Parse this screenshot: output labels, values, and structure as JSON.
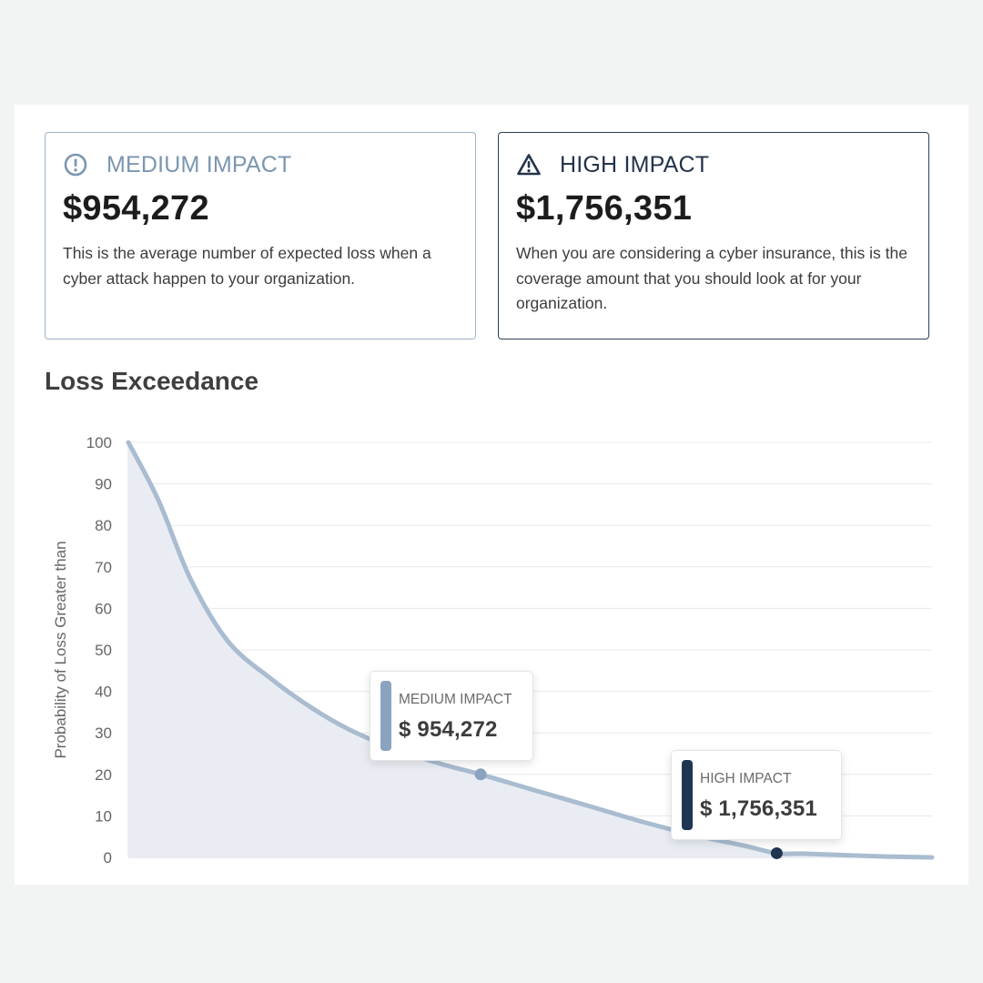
{
  "cards": {
    "medium": {
      "title": "MEDIUM IMPACT",
      "amount": "$954,272",
      "description": "This is the average number of expected loss when a cyber attack happen to your organization.",
      "icon": "exclamation-circle-icon",
      "color": "#7b96b0"
    },
    "high": {
      "title": "HIGH IMPACT",
      "amount": "$1,756,351",
      "description": "When you are considering a cyber insurance, this is the coverage amount that you should look at for your organization.",
      "icon": "warning-triangle-icon",
      "color": "#22344a"
    }
  },
  "chart_title": "Loss Exceedance",
  "tooltips": {
    "medium": {
      "label": "MEDIUM IMPACT",
      "value": "$ 954,272"
    },
    "high": {
      "label": "HIGH IMPACT",
      "value": "$ 1,756,351"
    }
  },
  "chart_data": {
    "type": "area",
    "title": "Loss Exceedance",
    "xlabel": "",
    "ylabel": "Probability of Loss Greater than",
    "ylim": [
      0,
      100
    ],
    "yticks": [
      0,
      10,
      20,
      30,
      40,
      50,
      60,
      70,
      80,
      90,
      100
    ],
    "x_tick_labels_shown": false,
    "grid": true,
    "series": [
      {
        "x": [
          0,
          81700,
          168900,
          270500,
          387100,
          497200,
          605200,
          726400,
          847600,
          954272,
          1087900,
          1243000,
          1395400,
          1536100,
          1668500,
          1756351,
          1826800,
          1953700,
          2055600,
          2177000
        ],
        "y": [
          100,
          86,
          67,
          52,
          43,
          36,
          30.5,
          26,
          22.5,
          20,
          16.5,
          12.5,
          8.5,
          5.3,
          2.8,
          1,
          0.9,
          0.5,
          0.2,
          0
        ],
        "color": "#a9bcd0",
        "fill": "#e9edf3"
      }
    ],
    "markers": [
      {
        "name": "MEDIUM IMPACT",
        "x": 954272,
        "y": 20,
        "color": "#8aa4bf"
      },
      {
        "name": "HIGH IMPACT",
        "x": 1756351,
        "y": 1,
        "color": "#1f3652"
      }
    ],
    "xlim": [
      0,
      2177000
    ]
  }
}
